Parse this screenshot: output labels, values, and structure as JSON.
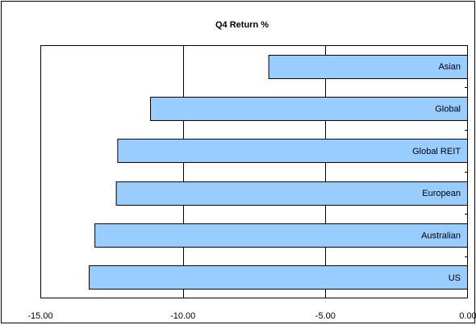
{
  "chart_data": {
    "type": "bar",
    "orientation": "horizontal",
    "title": "Q4 Return %",
    "xlabel": "",
    "ylabel": "",
    "categories": [
      "US",
      "Australian",
      "European",
      "Global REIT",
      "Global",
      "Asian"
    ],
    "values": [
      -13.3,
      -13.1,
      -12.35,
      -12.3,
      -11.15,
      -7.0
    ],
    "xlim": [
      -15.0,
      0.0
    ],
    "x_ticks": [
      -15.0,
      -10.0,
      -5.0,
      0.0
    ],
    "x_tick_labels": [
      "-15.00",
      "-10.00",
      "-5.00",
      "0.00"
    ],
    "grid": "vertical major gridlines",
    "legend": "none",
    "bar_color": "#99CCFF",
    "bar_edge_color": "#000000"
  }
}
